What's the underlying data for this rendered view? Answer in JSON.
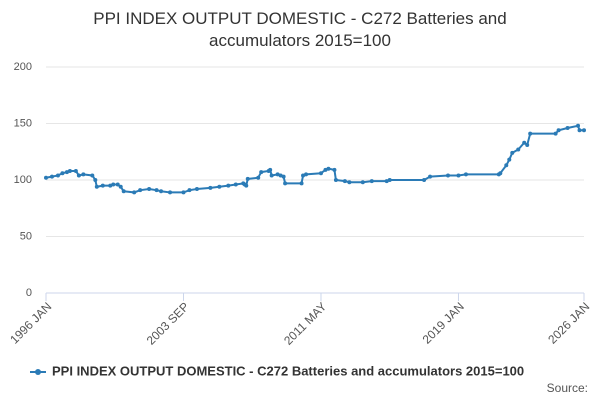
{
  "chart_data": {
    "type": "line",
    "title": "PPI INDEX OUTPUT DOMESTIC - C272 Batteries and accumulators 2015=100",
    "source": "Source:",
    "x": [
      "1996-01",
      "1996-05",
      "1996-09",
      "1996-12",
      "1997-03",
      "1997-05",
      "1997-09",
      "1997-11",
      "1998-02",
      "1998-08",
      "1998-10",
      "1998-11",
      "1999-03",
      "1999-08",
      "1999-10",
      "2000-01",
      "2000-03",
      "2000-05",
      "2000-12",
      "2001-04",
      "2001-10",
      "2002-03",
      "2002-06",
      "2002-12",
      "2003-09",
      "2004-01",
      "2004-06",
      "2005-03",
      "2005-09",
      "2006-03",
      "2006-08",
      "2007-01",
      "2007-02",
      "2007-03",
      "2007-04",
      "2007-11",
      "2008-01",
      "2008-06",
      "2008-07",
      "2008-08",
      "2008-12",
      "2009-02",
      "2009-04",
      "2009-05",
      "2010-04",
      "2010-05",
      "2010-07",
      "2011-05",
      "2011-08",
      "2011-10",
      "2012-02",
      "2012-03",
      "2012-09",
      "2012-12",
      "2013-09",
      "2014-03",
      "2015-01",
      "2015-03",
      "2017-02",
      "2017-06",
      "2018-06",
      "2019-01",
      "2019-06",
      "2021-04",
      "2021-05",
      "2021-09",
      "2021-11",
      "2022-01",
      "2022-05",
      "2022-09",
      "2022-11",
      "2023-01",
      "2024-06",
      "2024-08",
      "2025-02",
      "2025-09",
      "2025-10",
      "2026-01"
    ],
    "series": [
      {
        "name": "PPI INDEX OUTPUT DOMESTIC - C272 Batteries and accumulators 2015=100",
        "color": "#2b7bb6",
        "values": [
          102,
          103,
          104,
          106,
          107,
          108,
          108,
          104,
          105,
          104,
          100,
          94,
          95,
          95,
          96,
          96,
          94,
          90,
          89,
          91,
          92,
          91,
          90,
          89,
          89,
          91,
          92,
          93,
          94,
          95,
          96,
          97,
          96,
          95,
          101,
          102,
          107,
          108,
          109,
          104,
          105,
          104,
          103,
          97,
          97,
          104,
          105,
          106,
          109,
          110,
          109,
          100,
          99,
          98,
          98,
          99,
          99,
          100,
          100,
          103,
          104,
          104,
          105,
          105,
          106,
          113,
          118,
          124,
          127,
          133,
          131,
          141,
          141,
          144,
          146,
          148,
          144,
          144
        ]
      }
    ],
    "xlim": [
      "1996-01",
      "2026-01"
    ],
    "xticks": [
      {
        "value": "1996-01",
        "label": "1996 JAN"
      },
      {
        "value": "2003-09",
        "label": "2003 SEP"
      },
      {
        "value": "2011-05",
        "label": "2011 MAY"
      },
      {
        "value": "2019-01",
        "label": "2019 JAN"
      },
      {
        "value": "2026-01",
        "label": "2026 JAN"
      }
    ],
    "ylim": [
      0,
      200
    ],
    "yticks": [
      0,
      50,
      100,
      150,
      200
    ],
    "grid": true,
    "legend": "bottom"
  }
}
